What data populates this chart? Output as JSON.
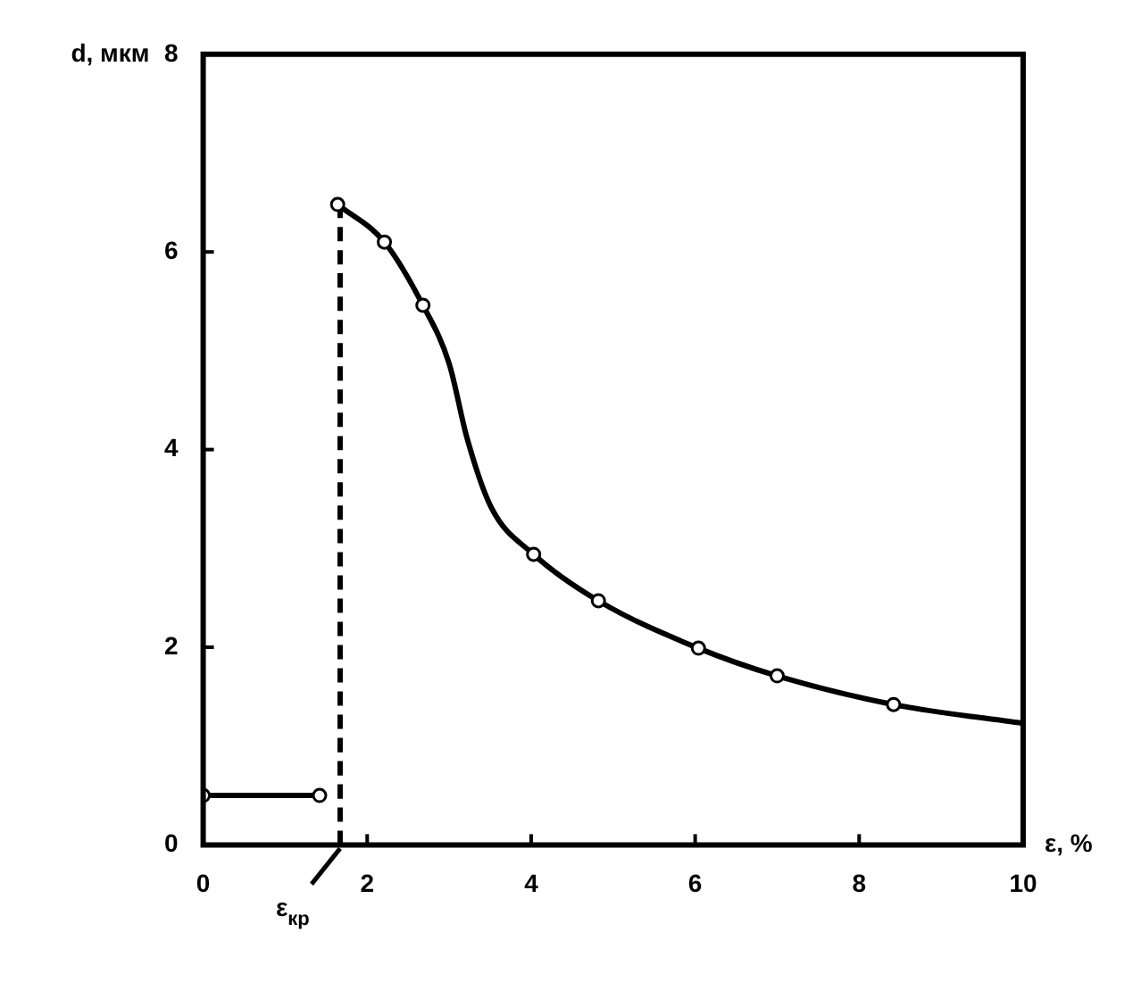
{
  "chart_data": {
    "type": "line",
    "xlabel": "ε, %",
    "ylabel": "d, мкм",
    "xlim": [
      0,
      10
    ],
    "ylim": [
      0,
      8
    ],
    "xticks": [
      0,
      2,
      4,
      6,
      8,
      10
    ],
    "yticks": [
      0,
      2,
      4,
      6,
      8
    ],
    "grid": false,
    "legend": false,
    "annotations": [
      {
        "text": "ε$_{кр}$",
        "x": 1.67,
        "y": 0
      }
    ],
    "series": [
      {
        "type": "line",
        "x": [
          0,
          1.42
        ],
        "values": [
          0.5,
          0.5
        ],
        "color": "#000000",
        "marker": "circle",
        "line_style": "solid"
      },
      {
        "type": "line",
        "x": [
          1.67,
          1.67
        ],
        "values": [
          0,
          6.48
        ],
        "color": "#000000",
        "marker": "none",
        "line_style": "dashed"
      },
      {
        "type": "line",
        "x": [
          1.64,
          2.21,
          2.68,
          3.0,
          3.22,
          3.51,
          4.03,
          4.82,
          6.04,
          7.0,
          8.42,
          10
        ],
        "values": [
          6.48,
          6.1,
          5.46,
          4.87,
          4.11,
          3.42,
          2.94,
          2.47,
          1.99,
          1.71,
          1.42,
          1.23
        ],
        "color": "#000000",
        "marker": "none",
        "line_style": "solid"
      },
      {
        "type": "scatter",
        "x": [
          1.64,
          2.21,
          2.68,
          4.03,
          4.82,
          6.04,
          7.0,
          8.42
        ],
        "values": [
          6.48,
          6.1,
          5.46,
          2.94,
          2.47,
          1.99,
          1.71,
          1.42
        ],
        "color": "#000000",
        "marker": "circle"
      }
    ]
  }
}
